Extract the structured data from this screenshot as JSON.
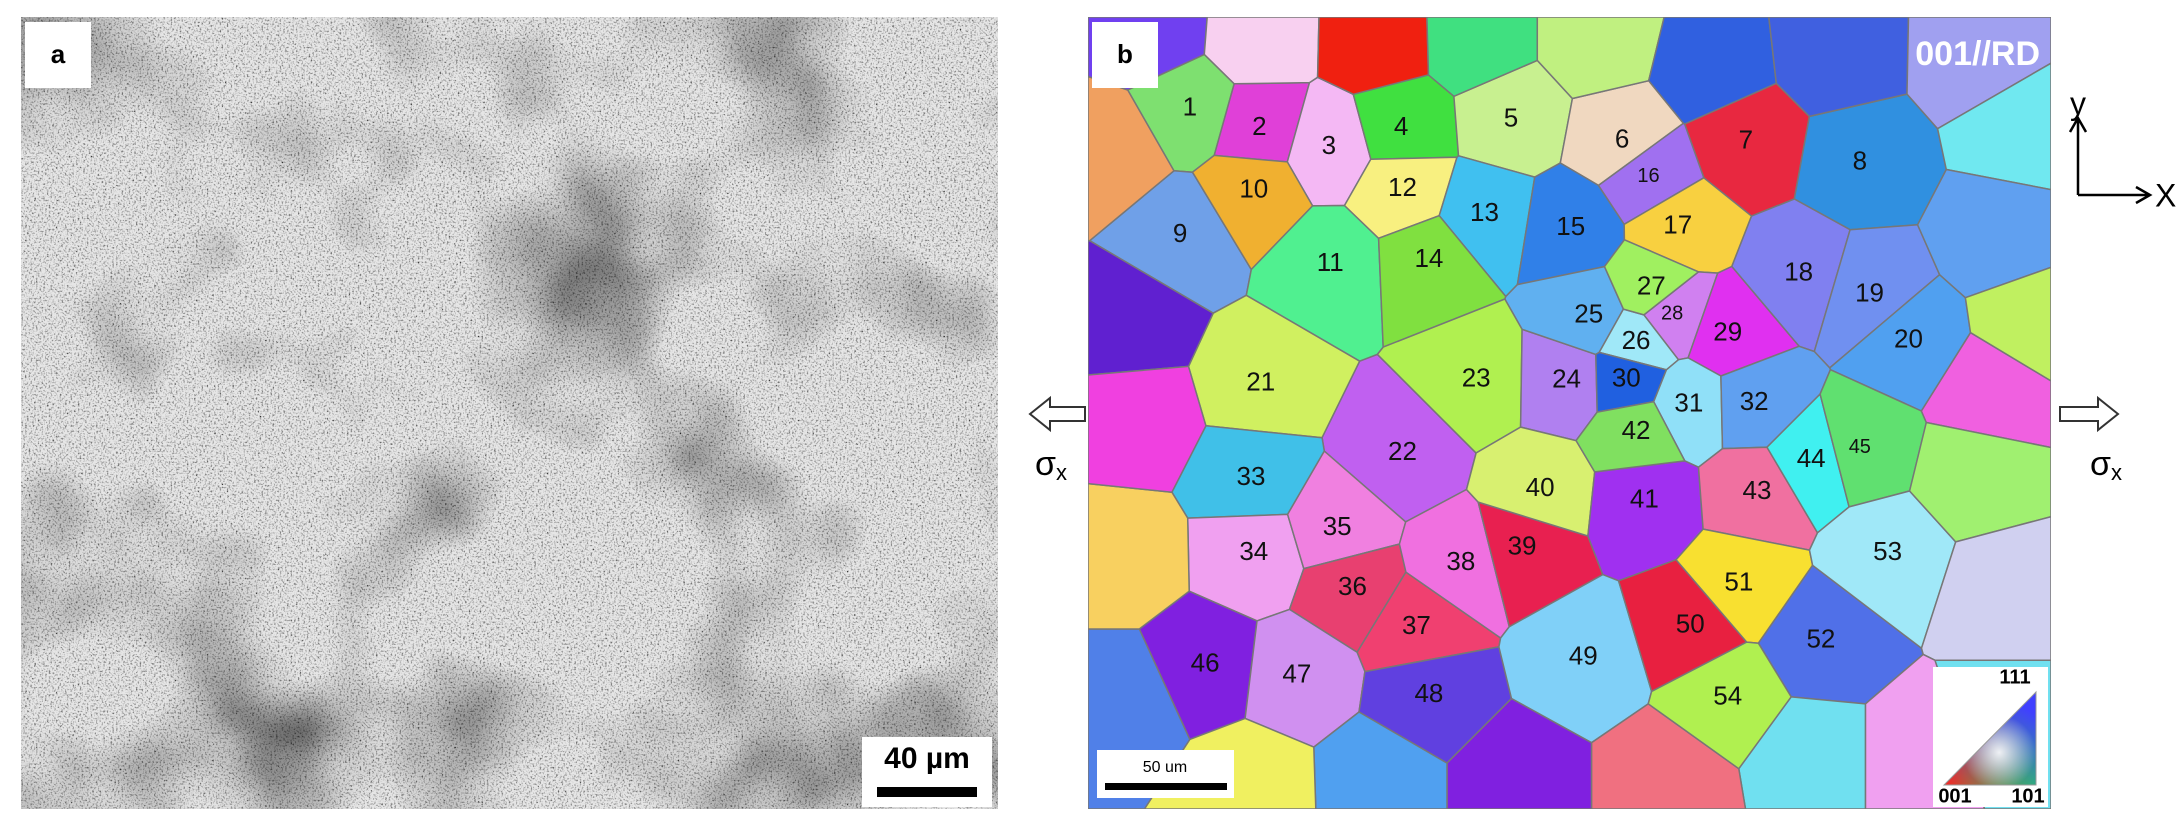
{
  "panel_a": {
    "label": "a",
    "scale_bar": "40 µm"
  },
  "left_stress": {
    "symbol": "σ",
    "subscript": "x"
  },
  "right_stress": {
    "symbol": "σ",
    "subscript": "x"
  },
  "panel_b": {
    "label": "b",
    "orientation": "001//RD",
    "grains": [
      "1",
      "2",
      "3",
      "4",
      "5",
      "6",
      "7",
      "8",
      "9",
      "10",
      "11",
      "12",
      "13",
      "14",
      "15",
      "16",
      "17",
      "18",
      "19",
      "20",
      "21",
      "22",
      "23",
      "24",
      "25",
      "26",
      "27",
      "28",
      "29",
      "30",
      "31",
      "32",
      "33",
      "34",
      "35",
      "36",
      "37",
      "38",
      "39",
      "40",
      "41",
      "42",
      "43",
      "44",
      "45",
      "46",
      "47",
      "48",
      "49",
      "50",
      "51",
      "52",
      "53",
      "54"
    ],
    "scale_bar": "50 um",
    "ipf_legend": {
      "top": "111",
      "left": "001",
      "right": "101"
    }
  },
  "axes": {
    "y": "y",
    "x": "X"
  }
}
